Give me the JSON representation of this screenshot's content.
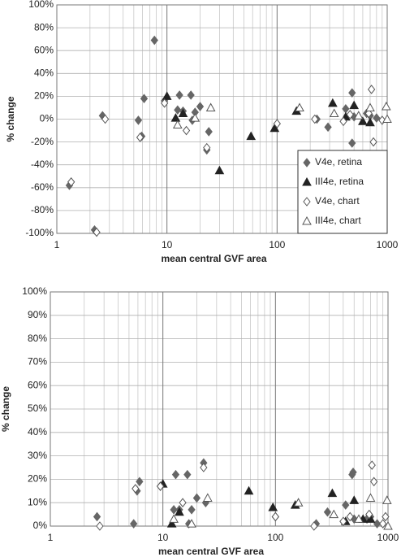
{
  "chart_data": [
    {
      "type": "scatter",
      "x_label": "mean central GVF area",
      "y_label": "% change",
      "log_x": true,
      "grid": true,
      "legend": "lower right",
      "xlim": [
        1,
        1000
      ],
      "xticks": [
        1,
        10,
        100,
        1000
      ],
      "ylim": [
        -100,
        100
      ],
      "yticks": [
        {
          "value": -100,
          "label": "-100%"
        },
        {
          "value": -80,
          "label": "-80%"
        },
        {
          "value": -60,
          "label": "-60%"
        },
        {
          "value": -40,
          "label": "-40%"
        },
        {
          "value": -20,
          "label": "-20%"
        },
        {
          "value": 0,
          "label": "0%"
        },
        {
          "value": 20,
          "label": "20%"
        },
        {
          "value": 40,
          "label": "40%"
        },
        {
          "value": 60,
          "label": "60%"
        },
        {
          "value": 80,
          "label": "80%"
        },
        {
          "value": 100,
          "label": "100%"
        }
      ],
      "series": [
        {
          "name": "V4e, retina",
          "marker": "diamond",
          "color": "#666666",
          "filled": true,
          "x": [
            1.3,
            2.2,
            2.6,
            5.5,
            5.9,
            6.2,
            7.7,
            9.5,
            12.5,
            13,
            14,
            16.5,
            17,
            18,
            20,
            23,
            24,
            230,
            290,
            420,
            480,
            480,
            500,
            650,
            700,
            800
          ],
          "values": [
            -58,
            -97,
            3,
            -1,
            -15,
            18,
            69,
            16,
            8,
            21,
            7,
            21,
            -1,
            6,
            11,
            -27,
            -11,
            0,
            -7,
            9,
            23,
            -21,
            2,
            5,
            3,
            1
          ]
        },
        {
          "name": "III4e, retina",
          "marker": "triangle",
          "color": "#222222",
          "filled": true,
          "x": [
            10,
            12,
            14,
            30,
            58,
            95,
            150,
            320,
            420,
            500,
            600,
            700
          ],
          "values": [
            20,
            1,
            5,
            -45,
            -15,
            -8,
            7,
            14,
            2,
            12,
            -2,
            -3
          ]
        },
        {
          "name": "V4e, chart",
          "marker": "diamond",
          "color": "#555555",
          "filled": false,
          "x": [
            1.35,
            2.3,
            2.75,
            5.7,
            9.5,
            15,
            23,
            100,
            220,
            400,
            460,
            680,
            720,
            750,
            900
          ],
          "values": [
            -55,
            -99,
            0,
            -16,
            14,
            -10,
            -25,
            -4,
            0,
            -2,
            4,
            5,
            26,
            -20,
            -1
          ]
        },
        {
          "name": "III4e, chart",
          "marker": "triangle",
          "color": "#555555",
          "filled": false,
          "x": [
            12.5,
            18,
            25,
            160,
            330,
            550,
            700,
            980,
            1000
          ],
          "values": [
            -5,
            1,
            10,
            10,
            5,
            3,
            10,
            11,
            0
          ]
        }
      ]
    },
    {
      "type": "scatter",
      "x_label": "mean central GVF area",
      "y_label": "% change",
      "log_x": true,
      "grid": true,
      "legend": null,
      "xlim": [
        1,
        1000
      ],
      "xticks": [
        1,
        10,
        100,
        1000
      ],
      "ylim": [
        0,
        100
      ],
      "yticks": [
        {
          "value": 0,
          "label": "0%"
        },
        {
          "value": 10,
          "label": "10%"
        },
        {
          "value": 20,
          "label": "20%"
        },
        {
          "value": 30,
          "label": "30%"
        },
        {
          "value": 40,
          "label": "40%"
        },
        {
          "value": 50,
          "label": "50%"
        },
        {
          "value": 60,
          "label": "60%"
        },
        {
          "value": 70,
          "label": "70%"
        },
        {
          "value": 80,
          "label": "80%"
        },
        {
          "value": 90,
          "label": "90%"
        },
        {
          "value": 100,
          "label": "100%"
        }
      ],
      "series": [
        {
          "marker": "diamond",
          "color": "#666666",
          "filled": true,
          "x": [
            2.6,
            5.5,
            5.9,
            6.2,
            9.5,
            12.5,
            13,
            14,
            16.5,
            17,
            18,
            20,
            23,
            24,
            100,
            230,
            290,
            420,
            480,
            490,
            500,
            650,
            700,
            800
          ],
          "values": [
            4,
            1,
            15,
            19,
            17,
            7,
            22,
            7,
            22,
            1,
            7,
            12,
            27,
            10,
            4,
            1,
            6,
            9,
            22,
            23,
            3,
            3,
            4,
            1
          ]
        },
        {
          "marker": "triangle",
          "color": "#222222",
          "filled": true,
          "x": [
            10,
            12,
            14,
            58,
            95,
            150,
            320,
            420,
            500,
            600,
            700
          ],
          "values": [
            18,
            1,
            6,
            15,
            8,
            9,
            14,
            2,
            11,
            3,
            3
          ]
        },
        {
          "marker": "diamond",
          "color": "#555555",
          "filled": false,
          "x": [
            2.75,
            5.7,
            9.5,
            15,
            23,
            100,
            220,
            400,
            460,
            680,
            720,
            750,
            900,
            950
          ],
          "values": [
            0,
            16,
            17,
            10,
            25,
            4,
            0,
            2,
            4,
            5,
            26,
            19,
            1,
            4
          ]
        },
        {
          "marker": "triangle",
          "color": "#555555",
          "filled": false,
          "x": [
            12.5,
            18,
            25,
            160,
            330,
            550,
            700,
            980,
            1000
          ],
          "values": [
            3,
            1,
            12,
            10,
            5,
            3,
            12,
            11,
            0
          ]
        }
      ]
    }
  ]
}
